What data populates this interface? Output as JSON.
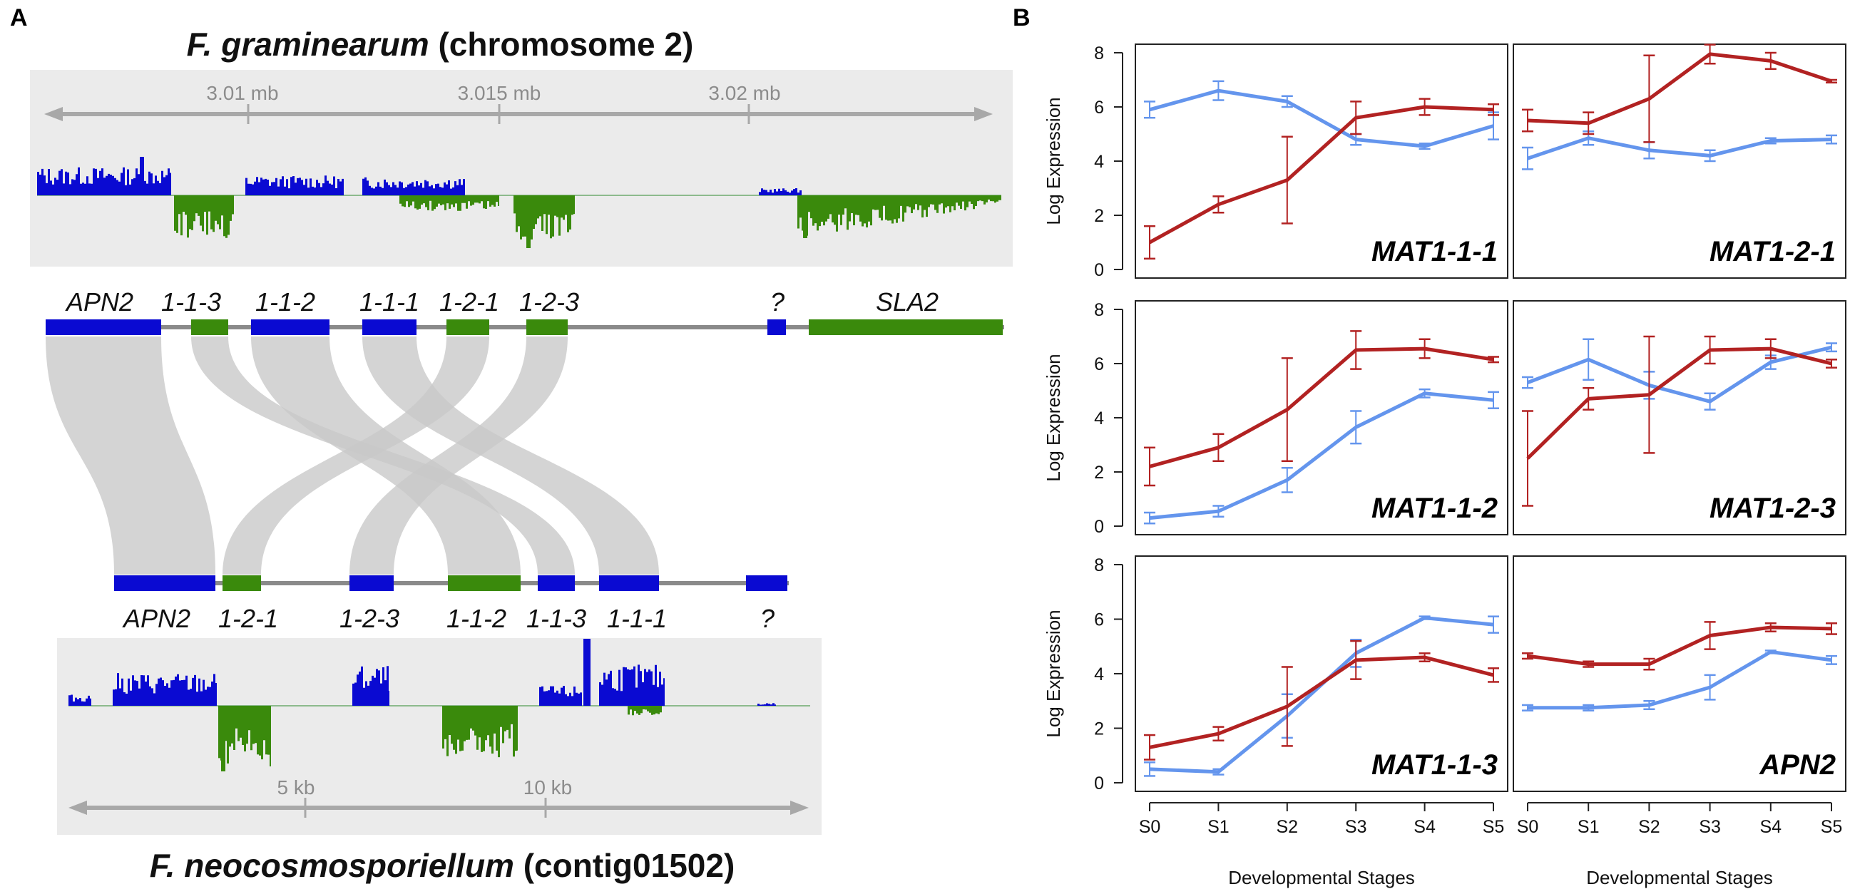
{
  "panel_a": {
    "letter": "A",
    "top_title_species": "F. graminearum",
    "top_title_suffix": " (chromosome 2)",
    "bottom_title_species": "F. neocosmosporiellum",
    "bottom_title_suffix": " (contig01502)",
    "top_scale_ticks": [
      "3.01 mb",
      "3.015 mb",
      "3.02 mb"
    ],
    "bottom_scale_ticks": [
      "5 kb",
      "10 kb"
    ],
    "top_genes": [
      {
        "label": "APN2",
        "strand": "plus"
      },
      {
        "label": "1-1-3",
        "strand": "minus"
      },
      {
        "label": "1-1-2",
        "strand": "plus"
      },
      {
        "label": "1-1-1",
        "strand": "plus"
      },
      {
        "label": "1-2-1",
        "strand": "minus"
      },
      {
        "label": "1-2-3",
        "strand": "minus"
      },
      {
        "label": "?",
        "strand": "plus"
      },
      {
        "label": "SLA2",
        "strand": "minus"
      }
    ],
    "bottom_genes": [
      {
        "label": "APN2",
        "strand": "plus"
      },
      {
        "label": "1-2-1",
        "strand": "minus"
      },
      {
        "label": "1-2-3",
        "strand": "plus"
      },
      {
        "label": "1-1-2",
        "strand": "minus"
      },
      {
        "label": "1-1-3",
        "strand": "plus"
      },
      {
        "label": "1-1-1",
        "strand": "plus"
      },
      {
        "label": "?",
        "strand": "plus"
      }
    ],
    "synteny_links": [
      {
        "from": "APN2",
        "to": "APN2"
      },
      {
        "from": "1-1-3",
        "to": "1-1-3"
      },
      {
        "from": "1-1-2",
        "to": "1-1-2"
      },
      {
        "from": "1-1-1",
        "to": "1-1-1"
      },
      {
        "from": "1-2-1",
        "to": "1-2-1"
      },
      {
        "from": "1-2-3",
        "to": "1-2-3"
      }
    ]
  },
  "chart_data": {
    "type": "line",
    "panel_letter": "B",
    "stages": [
      "S0",
      "S1",
      "S2",
      "S3",
      "S4",
      "S5"
    ],
    "xlabel": "Developmental Stages",
    "ylabel": "Log Expression",
    "ylim": [
      0,
      8
    ],
    "yticks": [
      "0",
      "2",
      "4",
      "6",
      "8"
    ],
    "series_colors": {
      "red": "#b22222",
      "blue": "#6495ed"
    },
    "panels": [
      {
        "title": "MAT1-1-1",
        "red": {
          "values": [
            1.0,
            2.4,
            3.3,
            5.6,
            6.0,
            5.9
          ],
          "err": [
            0.6,
            0.3,
            1.6,
            0.6,
            0.3,
            0.2
          ]
        },
        "blue": {
          "values": [
            5.9,
            6.6,
            6.2,
            4.8,
            4.55,
            5.3
          ],
          "err": [
            0.3,
            0.35,
            0.2,
            0.2,
            0.1,
            0.5
          ]
        }
      },
      {
        "title": "MAT1-2-1",
        "red": {
          "values": [
            5.5,
            5.4,
            6.3,
            7.95,
            7.7,
            6.95
          ],
          "err": [
            0.4,
            0.4,
            1.6,
            0.35,
            0.3,
            0.05
          ]
        },
        "blue": {
          "values": [
            4.1,
            4.85,
            4.4,
            4.2,
            4.75,
            4.8
          ],
          "err": [
            0.4,
            0.25,
            0.3,
            0.2,
            0.1,
            0.15
          ]
        }
      },
      {
        "title": "MAT1-1-2",
        "red": {
          "values": [
            2.2,
            2.9,
            4.3,
            6.5,
            6.55,
            6.15
          ],
          "err": [
            0.7,
            0.5,
            1.9,
            0.7,
            0.35,
            0.1
          ]
        },
        "blue": {
          "values": [
            0.3,
            0.55,
            1.7,
            3.65,
            4.9,
            4.65
          ],
          "err": [
            0.2,
            0.2,
            0.45,
            0.6,
            0.15,
            0.3
          ]
        }
      },
      {
        "title": "MAT1-2-3",
        "red": {
          "values": [
            2.5,
            4.7,
            4.85,
            6.5,
            6.55,
            6.0
          ],
          "err": [
            1.75,
            0.4,
            2.15,
            0.5,
            0.35,
            0.15
          ]
        },
        "blue": {
          "values": [
            5.3,
            6.15,
            5.2,
            4.6,
            6.05,
            6.6
          ],
          "err": [
            0.2,
            0.75,
            0.5,
            0.3,
            0.25,
            0.15
          ]
        }
      },
      {
        "title": "MAT1-1-3",
        "red": {
          "values": [
            1.3,
            1.8,
            2.8,
            4.5,
            4.6,
            3.95
          ],
          "err": [
            0.45,
            0.25,
            1.45,
            0.7,
            0.15,
            0.25
          ]
        },
        "blue": {
          "values": [
            0.5,
            0.4,
            2.45,
            4.75,
            6.05,
            5.8
          ],
          "err": [
            0.25,
            0.1,
            0.8,
            0.5,
            0.05,
            0.3
          ]
        }
      },
      {
        "title": "APN2",
        "red": {
          "values": [
            4.65,
            4.35,
            4.35,
            5.4,
            5.7,
            5.65
          ],
          "err": [
            0.1,
            0.1,
            0.2,
            0.5,
            0.15,
            0.2
          ]
        },
        "blue": {
          "values": [
            2.75,
            2.75,
            2.85,
            3.5,
            4.8,
            4.5
          ],
          "err": [
            0.1,
            0.1,
            0.15,
            0.45,
            0.05,
            0.15
          ]
        }
      }
    ]
  }
}
